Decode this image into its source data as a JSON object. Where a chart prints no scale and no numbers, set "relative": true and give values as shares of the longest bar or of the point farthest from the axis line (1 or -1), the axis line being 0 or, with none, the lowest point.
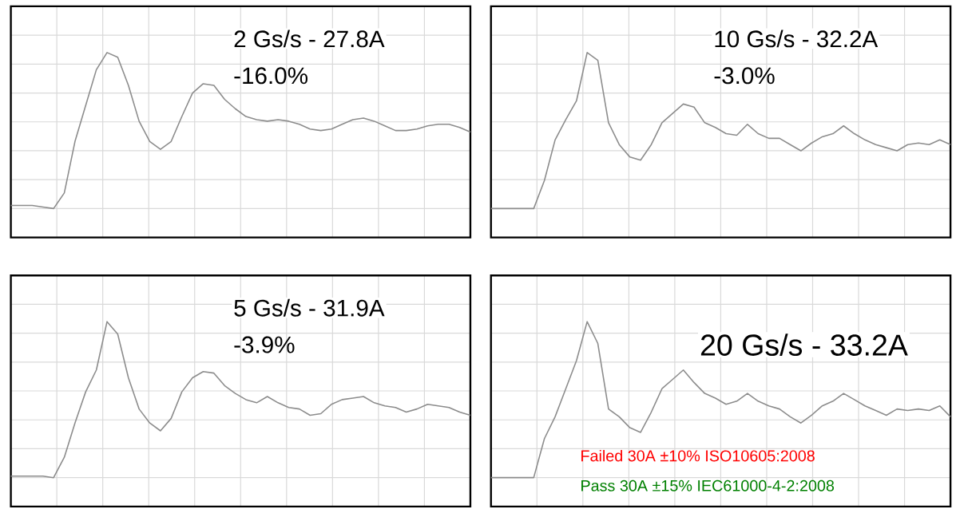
{
  "chart_data": [
    {
      "type": "line",
      "title": "2 Gs/s - 27.8A",
      "subtitle": "-16.0%",
      "relative": true,
      "grid": true,
      "categories": [
        null,
        null,
        null,
        null,
        null,
        null,
        null,
        null,
        null,
        null,
        null,
        null,
        null,
        null,
        null,
        null,
        null,
        null,
        null,
        null,
        null,
        null,
        null,
        null,
        null,
        null,
        null,
        null,
        null,
        null,
        null,
        null,
        null,
        null,
        null,
        null,
        null,
        null,
        null,
        null,
        null,
        null,
        null,
        null
      ],
      "series": [
        {
          "color": "#8c8c8c",
          "values": [
            0.02,
            0.02,
            0.02,
            0.01,
            0,
            0.1,
            0.43,
            0.66,
            0.89,
            1.0,
            0.97,
            0.79,
            0.56,
            0.43,
            0.38,
            0.43,
            0.59,
            0.74,
            0.8,
            0.79,
            0.7,
            0.64,
            0.59,
            0.57,
            0.56,
            0.57,
            0.56,
            0.54,
            0.51,
            0.5,
            0.51,
            0.54,
            0.57,
            0.58,
            0.56,
            0.53,
            0.5,
            0.5,
            0.51,
            0.53,
            0.54,
            0.54,
            0.52,
            0.49
          ]
        }
      ]
    },
    {
      "type": "line",
      "title": "10 Gs/s - 32.2A",
      "subtitle": "-3.0%",
      "relative": true,
      "grid": true,
      "categories": [
        null,
        null,
        null,
        null,
        null,
        null,
        null,
        null,
        null,
        null,
        null,
        null,
        null,
        null,
        null,
        null,
        null,
        null,
        null,
        null,
        null,
        null,
        null,
        null,
        null,
        null,
        null,
        null,
        null,
        null,
        null,
        null,
        null,
        null,
        null,
        null,
        null,
        null,
        null,
        null,
        null,
        null,
        null,
        null
      ],
      "series": [
        {
          "color": "#8c8c8c",
          "values": [
            0,
            0,
            0,
            0,
            0,
            0.18,
            0.44,
            0.57,
            0.69,
            1.0,
            0.95,
            0.55,
            0.41,
            0.33,
            0.31,
            0.41,
            0.55,
            0.61,
            0.67,
            0.65,
            0.55,
            0.52,
            0.48,
            0.47,
            0.54,
            0.48,
            0.45,
            0.45,
            0.41,
            0.37,
            0.42,
            0.46,
            0.48,
            0.53,
            0.48,
            0.44,
            0.41,
            0.39,
            0.37,
            0.41,
            0.42,
            0.41,
            0.44,
            0.41
          ]
        }
      ]
    },
    {
      "type": "line",
      "title": "5 Gs/s - 31.9A",
      "subtitle": "-3.9%",
      "relative": true,
      "grid": true,
      "categories": [
        null,
        null,
        null,
        null,
        null,
        null,
        null,
        null,
        null,
        null,
        null,
        null,
        null,
        null,
        null,
        null,
        null,
        null,
        null,
        null,
        null,
        null,
        null,
        null,
        null,
        null,
        null,
        null,
        null,
        null,
        null,
        null,
        null,
        null,
        null,
        null,
        null,
        null,
        null,
        null,
        null,
        null,
        null,
        null
      ],
      "series": [
        {
          "color": "#8c8c8c",
          "values": [
            0.01,
            0.01,
            0.01,
            0.01,
            0,
            0.13,
            0.35,
            0.55,
            0.69,
            1.0,
            0.92,
            0.64,
            0.44,
            0.35,
            0.3,
            0.38,
            0.55,
            0.64,
            0.68,
            0.67,
            0.59,
            0.54,
            0.5,
            0.48,
            0.52,
            0.48,
            0.45,
            0.44,
            0.4,
            0.41,
            0.47,
            0.5,
            0.51,
            0.52,
            0.48,
            0.46,
            0.45,
            0.42,
            0.44,
            0.47,
            0.46,
            0.45,
            0.42,
            0.4
          ]
        }
      ]
    },
    {
      "type": "line",
      "title": "20 Gs/s - 33.2A",
      "relative": true,
      "grid": true,
      "annotations": [
        "Failed 30A ±10% ISO10605:2008",
        "Pass  30A ±15% IEC61000-4-2:2008"
      ],
      "categories": [
        null,
        null,
        null,
        null,
        null,
        null,
        null,
        null,
        null,
        null,
        null,
        null,
        null,
        null,
        null,
        null,
        null,
        null,
        null,
        null,
        null,
        null,
        null,
        null,
        null,
        null,
        null,
        null,
        null,
        null,
        null,
        null,
        null,
        null,
        null,
        null,
        null,
        null,
        null,
        null,
        null,
        null,
        null,
        null
      ],
      "series": [
        {
          "color": "#8c8c8c",
          "values": [
            0,
            0,
            0,
            0,
            0,
            0.25,
            0.39,
            0.57,
            0.75,
            1.0,
            0.86,
            0.44,
            0.39,
            0.32,
            0.29,
            0.42,
            0.57,
            0.63,
            0.69,
            0.61,
            0.54,
            0.51,
            0.47,
            0.49,
            0.54,
            0.49,
            0.46,
            0.44,
            0.39,
            0.35,
            0.4,
            0.46,
            0.49,
            0.54,
            0.5,
            0.46,
            0.43,
            0.4,
            0.44,
            0.43,
            0.44,
            0.43,
            0.46,
            0.39
          ]
        }
      ]
    }
  ]
}
